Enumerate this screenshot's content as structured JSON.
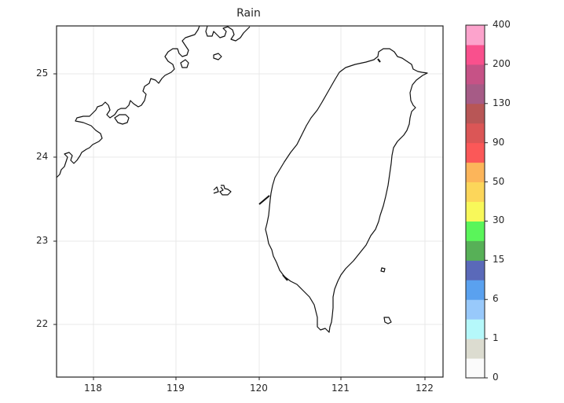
{
  "chart_data": {
    "type": "map",
    "title": "Rain",
    "xlabel": "",
    "ylabel": "",
    "xlim": [
      117.55,
      122.2
    ],
    "ylim": [
      21.35,
      25.55
    ],
    "xticks": [
      "118",
      "119",
      "120",
      "121",
      "122"
    ],
    "yticks": [
      "25",
      "24",
      "23",
      "22"
    ],
    "grid": true,
    "features": [
      "coastline: Taiwan",
      "coastline: Fujian (mainland China)",
      "Penghu islands",
      "Green Island",
      "Orchid Island"
    ],
    "field_values": "all zero / no rain shown",
    "colorbar": {
      "label": "",
      "position": "right",
      "bounds": [
        0,
        0.5,
        1,
        2,
        6,
        10,
        15,
        20,
        30,
        40,
        50,
        70,
        90,
        110,
        130,
        150,
        200,
        300,
        400
      ],
      "tick_labels": [
        "0",
        "1",
        "6",
        "15",
        "30",
        "50",
        "90",
        "130",
        "200",
        "400"
      ],
      "colors": [
        "#fbfbfb",
        "#dcdcd0",
        "#b5f8fa",
        "#98c9fb",
        "#5aa1ef",
        "#5a69b9",
        "#57b057",
        "#5af55a",
        "#f8f85a",
        "#fcd65a",
        "#fcb55a",
        "#fb5858",
        "#db5656",
        "#b85656",
        "#a65b86",
        "#c65286",
        "#f9508d",
        "#fca3cc"
      ]
    }
  },
  "figure": {
    "title": "Rain"
  }
}
